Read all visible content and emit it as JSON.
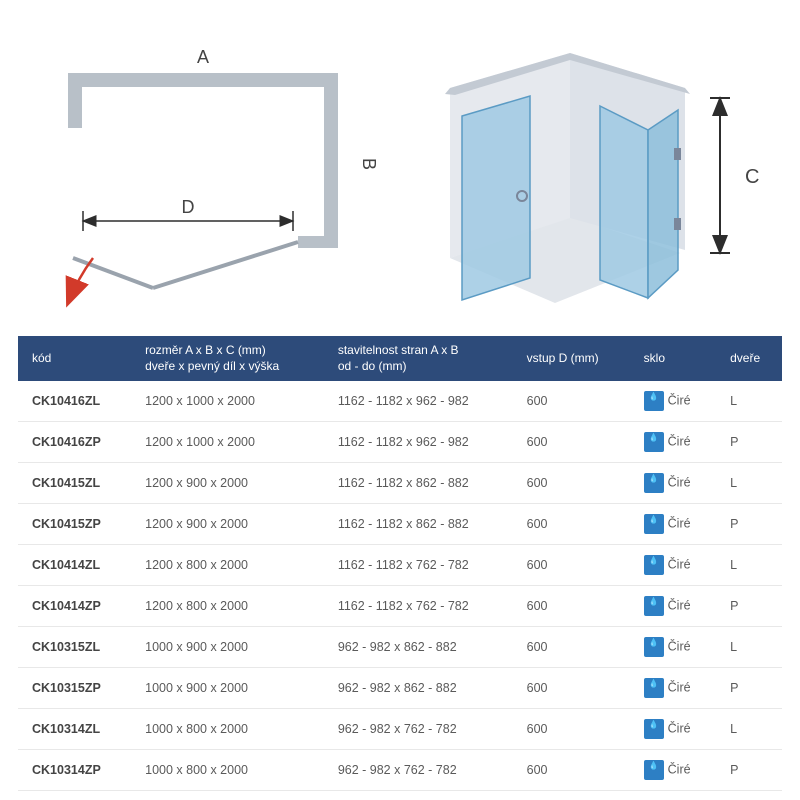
{
  "diagram2d": {
    "labelA": "A",
    "labelB": "B",
    "labelD": "D",
    "wall_color": "#b8c0c8",
    "arrow_color": "#2d2d2d",
    "swing_arrow_color": "#d23a2a"
  },
  "diagram3d": {
    "labelC": "C",
    "wall_color": "#dfe3e8",
    "wall_top_color": "#c3cad3",
    "glass_fill": "#9fc9e3",
    "glass_stroke": "#5b9bc4",
    "arrow_color": "#2d2d2d",
    "handle_color": "#7a869a"
  },
  "table": {
    "headers": {
      "kod": "kód",
      "rozmer": "rozměr A x B x C (mm)\ndveře x pevný díl x výška",
      "stavitelnost": "stavitelnost stran A x B\nod - do (mm)",
      "vstup": "vstup D (mm)",
      "sklo": "sklo",
      "dvere": "dveře"
    },
    "glass_label": "Čiré",
    "rows": [
      {
        "kod": "CK10416ZL",
        "rozmer": "1200 x 1000 x 2000",
        "stav": "1162 - 1182 x 962 - 982",
        "vstup": "600",
        "dvere": "L"
      },
      {
        "kod": "CK10416ZP",
        "rozmer": "1200 x 1000 x 2000",
        "stav": "1162 - 1182 x 962 - 982",
        "vstup": "600",
        "dvere": "P"
      },
      {
        "kod": "CK10415ZL",
        "rozmer": "1200 x 900 x 2000",
        "stav": "1162 - 1182 x 862 - 882",
        "vstup": "600",
        "dvere": "L"
      },
      {
        "kod": "CK10415ZP",
        "rozmer": "1200 x 900 x 2000",
        "stav": "1162 - 1182 x 862 - 882",
        "vstup": "600",
        "dvere": "P"
      },
      {
        "kod": "CK10414ZL",
        "rozmer": "1200 x 800 x 2000",
        "stav": "1162 - 1182 x 762 - 782",
        "vstup": "600",
        "dvere": "L"
      },
      {
        "kod": "CK10414ZP",
        "rozmer": "1200 x 800 x 2000",
        "stav": "1162 - 1182 x 762 - 782",
        "vstup": "600",
        "dvere": "P"
      },
      {
        "kod": "CK10315ZL",
        "rozmer": "1000 x 900 x 2000",
        "stav": "962 - 982 x 862 - 882",
        "vstup": "600",
        "dvere": "L"
      },
      {
        "kod": "CK10315ZP",
        "rozmer": "1000 x 900 x 2000",
        "stav": "962 - 982 x 862 - 882",
        "vstup": "600",
        "dvere": "P"
      },
      {
        "kod": "CK10314ZL",
        "rozmer": "1000 x 800 x 2000",
        "stav": "962 - 982 x 762 - 782",
        "vstup": "600",
        "dvere": "L"
      },
      {
        "kod": "CK10314ZP",
        "rozmer": "1000 x 800 x 2000",
        "stav": "962 - 982 x 762 - 782",
        "vstup": "600",
        "dvere": "P"
      }
    ]
  },
  "colors": {
    "header_bg": "#2d4b7a",
    "text": "#5a5a5a",
    "border": "#e8e8e8",
    "icon_bg": "#2d7fc4"
  }
}
